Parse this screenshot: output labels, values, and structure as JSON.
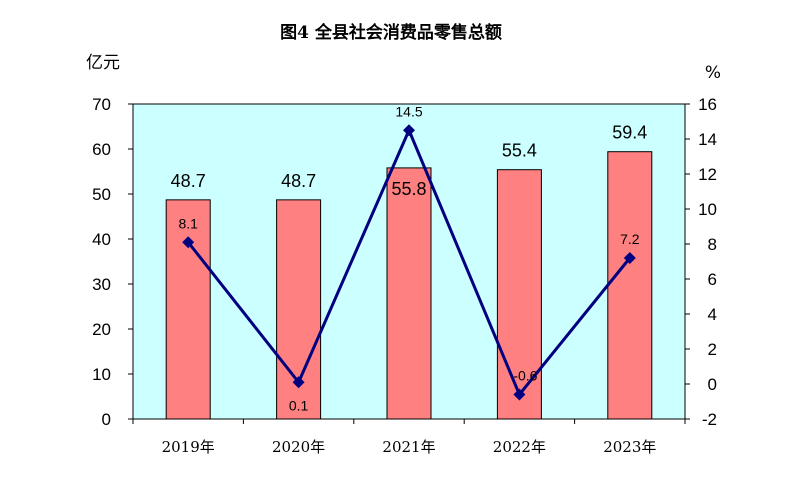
{
  "chart_data": {
    "type": "bar",
    "title": "图4 全县社会消费品零售总额",
    "categories": [
      "2019年",
      "2020年",
      "2021年",
      "2022年",
      "2023年"
    ],
    "y_left_unit": "亿元",
    "y_right_unit": "%",
    "ylim_left": [
      0,
      70
    ],
    "yticks_left": [
      "0",
      "10",
      "20",
      "30",
      "40",
      "50",
      "60",
      "70"
    ],
    "ylim_right": [
      -2,
      16
    ],
    "yticks_right": [
      "-2",
      "0",
      "2",
      "4",
      "6",
      "8",
      "10",
      "12",
      "14",
      "16"
    ],
    "bar_labels": [
      "48.7",
      "48.7",
      "55.8",
      "55.4",
      "59.4"
    ],
    "line_labels": [
      "8.1",
      "0.1",
      "14.5",
      "-0.6",
      "7.2"
    ],
    "series": [
      {
        "type": "bar",
        "axis": "left",
        "values": [
          48.7,
          48.7,
          55.8,
          55.4,
          59.4
        ]
      },
      {
        "type": "line",
        "axis": "right",
        "values": [
          8.1,
          0.1,
          14.5,
          -0.6,
          7.2
        ]
      }
    ],
    "colors": {
      "plot_bg": "#CCFFFF",
      "bar": "#FF8080",
      "line": "#000080"
    },
    "grid": false,
    "legend": "none"
  }
}
